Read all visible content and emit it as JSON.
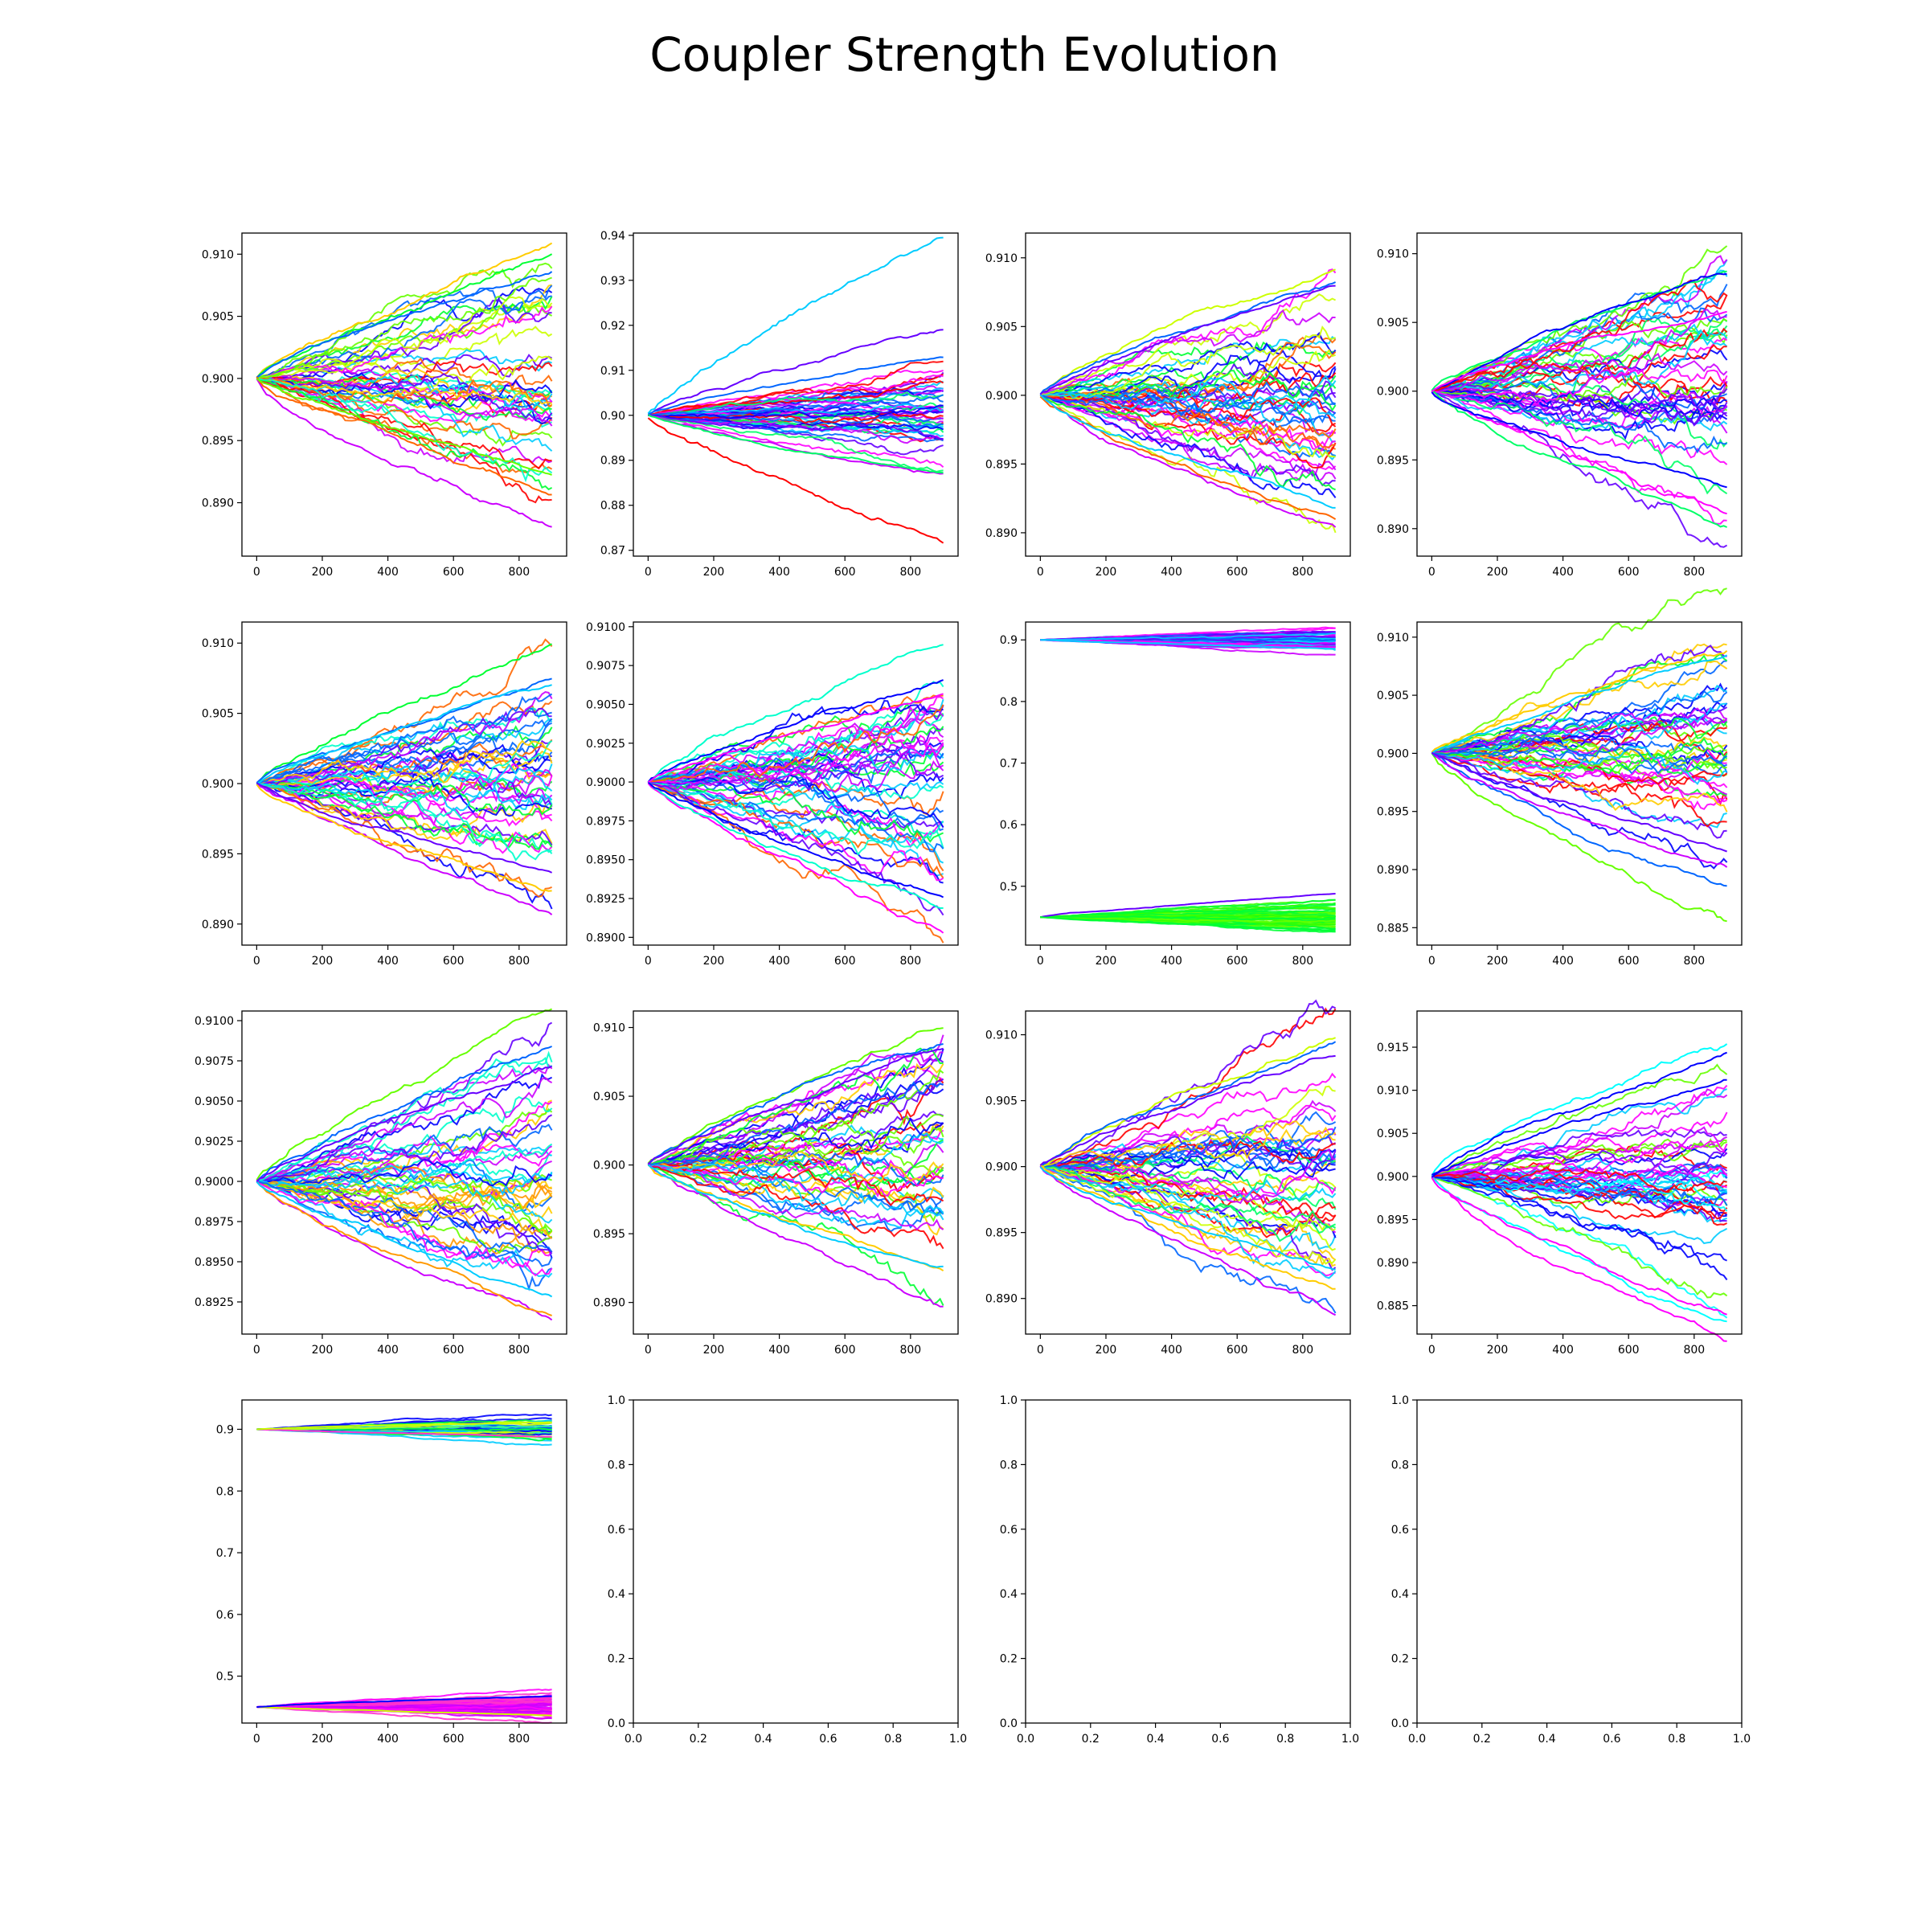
{
  "figure_title": "Coupler Strength Evolution",
  "chart_data": [
    {
      "type": "line",
      "xticks": [
        "0",
        "200",
        "400",
        "600",
        "800"
      ],
      "xlim": [
        -45,
        945
      ],
      "yticks": [
        "0.890",
        "0.895",
        "0.900",
        "0.905",
        "0.910"
      ],
      "ytick_values": [
        0.89,
        0.895,
        0.9,
        0.905,
        0.91
      ],
      "ylim": [
        0.8857,
        0.9117
      ],
      "x_end": 900,
      "start": [
        0.9
      ],
      "spread_end": 0.0055,
      "outliers": [
        0.9107,
        0.9093,
        0.9085,
        0.8872,
        0.89,
        0.8925
      ],
      "palette": [
        "#ff0000",
        "#ff6600",
        "#ffcc00",
        "#ccff00",
        "#66ff00",
        "#00ff33",
        "#00ffcc",
        "#00ccff",
        "#0066ff",
        "#0000ff",
        "#6600ff",
        "#cc00ff",
        "#ff00ff"
      ]
    },
    {
      "type": "line",
      "xticks": [
        "0",
        "200",
        "400",
        "600",
        "800"
      ],
      "xlim": [
        -45,
        945
      ],
      "yticks": [
        "0.87",
        "0.88",
        "0.89",
        "0.90",
        "0.91",
        "0.92",
        "0.93",
        "0.94"
      ],
      "ytick_values": [
        0.87,
        0.88,
        0.89,
        0.9,
        0.91,
        0.92,
        0.93,
        0.94
      ],
      "ylim": [
        0.8687,
        0.9405
      ],
      "x_end": 900,
      "start": [
        0.9
      ],
      "spread_end": 0.006,
      "outliers": [
        0.9372,
        0.9197,
        0.8722,
        0.913,
        0.885,
        0.887
      ],
      "palette": [
        "#ff0000",
        "#00ff66",
        "#00ccff",
        "#0066ff",
        "#0000ff",
        "#6600ff",
        "#cc00ff",
        "#ff00ff"
      ]
    },
    {
      "type": "line",
      "xticks": [
        "0",
        "200",
        "400",
        "600",
        "800"
      ],
      "xlim": [
        -45,
        945
      ],
      "yticks": [
        "0.890",
        "0.895",
        "0.900",
        "0.905",
        "0.910"
      ],
      "ytick_values": [
        0.89,
        0.895,
        0.9,
        0.905,
        0.91
      ],
      "ylim": [
        0.8883,
        0.9118
      ],
      "x_end": 900,
      "start": [
        0.9
      ],
      "spread_end": 0.0055,
      "outliers": [
        0.9095,
        0.9085,
        0.891,
        0.8915,
        0.8925,
        0.9075
      ],
      "palette": [
        "#ff0000",
        "#ff6600",
        "#ccff00",
        "#00ff33",
        "#00ccff",
        "#0066ff",
        "#0000ff",
        "#6600ff",
        "#cc00ff",
        "#ff00ff"
      ]
    },
    {
      "type": "line",
      "xticks": [
        "0",
        "200",
        "400",
        "600",
        "800"
      ],
      "xlim": [
        -45,
        945
      ],
      "yticks": [
        "0.890",
        "0.895",
        "0.900",
        "0.905",
        "0.910"
      ],
      "ytick_values": [
        0.89,
        0.895,
        0.9,
        0.905,
        0.91
      ],
      "ylim": [
        0.888,
        0.9115
      ],
      "x_end": 900,
      "start": [
        0.9
      ],
      "spread_end": 0.0055,
      "outliers": [
        0.9085,
        0.9075,
        0.889,
        0.89,
        0.8935,
        0.906
      ],
      "palette": [
        "#ff0000",
        "#66ff00",
        "#00ff66",
        "#00ccff",
        "#0066ff",
        "#0000ff",
        "#6600ff",
        "#cc00ff",
        "#ff00ff"
      ]
    },
    {
      "type": "line",
      "xticks": [
        "0",
        "200",
        "400",
        "600",
        "800"
      ],
      "xlim": [
        -45,
        945
      ],
      "yticks": [
        "0.890",
        "0.895",
        "0.900",
        "0.905",
        "0.910"
      ],
      "ytick_values": [
        0.89,
        0.895,
        0.9,
        0.905,
        0.91
      ],
      "ylim": [
        0.8885,
        0.9115
      ],
      "x_end": 900,
      "start": [
        0.9
      ],
      "spread_end": 0.0055,
      "outliers": [
        0.9105,
        0.908,
        0.8905,
        0.8925,
        0.9065,
        0.8935
      ],
      "palette": [
        "#ff6600",
        "#ffcc00",
        "#00ff33",
        "#00ffcc",
        "#00ccff",
        "#0066ff",
        "#0000ff",
        "#6600ff",
        "#cc00ff",
        "#ff00ff"
      ]
    },
    {
      "type": "line",
      "xticks": [
        "0",
        "200",
        "400",
        "600",
        "800"
      ],
      "xlim": [
        -45,
        945
      ],
      "yticks": [
        "0.8900",
        "0.8925",
        "0.8950",
        "0.8975",
        "0.9000",
        "0.9025",
        "0.9050",
        "0.9075",
        "0.9100"
      ],
      "ytick_values": [
        0.89,
        0.8925,
        0.895,
        0.8975,
        0.9,
        0.9025,
        0.905,
        0.9075,
        0.91
      ],
      "ylim": [
        0.8895,
        0.9103
      ],
      "x_end": 900,
      "start": [
        0.9
      ],
      "spread_end": 0.005,
      "outliers": [
        0.909,
        0.9075,
        0.8905,
        0.892,
        0.893,
        0.906
      ],
      "palette": [
        "#ff6600",
        "#00ff33",
        "#00ffcc",
        "#00ccff",
        "#0066ff",
        "#0000ff",
        "#6600ff",
        "#cc00ff",
        "#ff00ff"
      ]
    },
    {
      "type": "line",
      "xticks": [
        "0",
        "200",
        "400",
        "600",
        "800"
      ],
      "xlim": [
        -45,
        945
      ],
      "yticks": [
        "0.5",
        "0.6",
        "0.7",
        "0.8",
        "0.9"
      ],
      "ytick_values": [
        0.5,
        0.6,
        0.7,
        0.8,
        0.9
      ],
      "ylim": [
        0.4045,
        0.929
      ],
      "x_end": 900,
      "start": [
        0.9,
        0.45
      ],
      "spread_end": 0.012,
      "outliers": [
        0.4835,
        0.429,
        0.886
      ],
      "palette_groups": [
        [
          "#00ccff",
          "#0066ff",
          "#6600ff",
          "#cc00ff",
          "#ff00ff"
        ],
        [
          "#00ff33",
          "#33ff00",
          "#66ff00"
        ]
      ]
    },
    {
      "type": "line",
      "xticks": [
        "0",
        "200",
        "400",
        "600",
        "800"
      ],
      "xlim": [
        -45,
        945
      ],
      "yticks": [
        "0.885",
        "0.890",
        "0.895",
        "0.900",
        "0.905",
        "0.910"
      ],
      "ytick_values": [
        0.885,
        0.89,
        0.895,
        0.9,
        0.905,
        0.91
      ],
      "ylim": [
        0.8835,
        0.9113
      ],
      "x_end": 900,
      "start": [
        0.9
      ],
      "spread_end": 0.0055,
      "outliers": [
        0.8852,
        0.888,
        0.89,
        0.9095,
        0.908,
        0.8915
      ],
      "palette": [
        "#ff0000",
        "#ffcc00",
        "#66ff00",
        "#00ff33",
        "#00ccff",
        "#0066ff",
        "#0000ff",
        "#6600ff",
        "#cc00ff",
        "#ff00ff"
      ]
    },
    {
      "type": "line",
      "xticks": [
        "0",
        "200",
        "400",
        "600",
        "800"
      ],
      "xlim": [
        -45,
        945
      ],
      "yticks": [
        "0.8925",
        "0.8950",
        "0.8975",
        "0.9000",
        "0.9025",
        "0.9050",
        "0.9075",
        "0.9100"
      ],
      "ytick_values": [
        0.8925,
        0.895,
        0.8975,
        0.9,
        0.9025,
        0.905,
        0.9075,
        0.91
      ],
      "ylim": [
        0.8905,
        0.9106
      ],
      "x_end": 900,
      "start": [
        0.9
      ],
      "spread_end": 0.0048,
      "outliers": [
        0.9095,
        0.9085,
        0.8915,
        0.8925,
        0.8935,
        0.907
      ],
      "palette": [
        "#ffcc00",
        "#ff9900",
        "#66ff00",
        "#00ffcc",
        "#00ccff",
        "#0066ff",
        "#0000ff",
        "#6600ff",
        "#cc00ff",
        "#ff00ff"
      ]
    },
    {
      "type": "line",
      "xticks": [
        "0",
        "200",
        "400",
        "600",
        "800"
      ],
      "xlim": [
        -45,
        945
      ],
      "yticks": [
        "0.890",
        "0.895",
        "0.900",
        "0.905",
        "0.910"
      ],
      "ytick_values": [
        0.89,
        0.895,
        0.9,
        0.905,
        0.91
      ],
      "ylim": [
        0.8877,
        0.9112
      ],
      "x_end": 900,
      "start": [
        0.9
      ],
      "spread_end": 0.0055,
      "outliers": [
        0.9095,
        0.9085,
        0.889,
        0.8915,
        0.8925,
        0.9075
      ],
      "palette": [
        "#ff0000",
        "#ffcc00",
        "#66ff00",
        "#00ff33",
        "#00ccff",
        "#0066ff",
        "#0000ff",
        "#6600ff",
        "#cc00ff",
        "#ff00ff"
      ]
    },
    {
      "type": "line",
      "xticks": [
        "0",
        "200",
        "400",
        "600",
        "800"
      ],
      "xlim": [
        -45,
        945
      ],
      "yticks": [
        "0.890",
        "0.895",
        "0.900",
        "0.905",
        "0.910"
      ],
      "ytick_values": [
        0.89,
        0.895,
        0.9,
        0.905,
        0.91
      ],
      "ylim": [
        0.8873,
        0.9118
      ],
      "x_end": 900,
      "start": [
        0.9
      ],
      "spread_end": 0.0055,
      "outliers": [
        0.9105,
        0.9095,
        0.889,
        0.8905,
        0.8925,
        0.908
      ],
      "palette": [
        "#ff0000",
        "#ffcc00",
        "#ccff00",
        "#00ff66",
        "#00ccff",
        "#0066ff",
        "#0000ff",
        "#6600ff",
        "#cc00ff",
        "#ff00ff"
      ]
    },
    {
      "type": "line",
      "xticks": [
        "0",
        "200",
        "400",
        "600",
        "800"
      ],
      "xlim": [
        -45,
        945
      ],
      "yticks": [
        "0.885",
        "0.890",
        "0.895",
        "0.900",
        "0.905",
        "0.910",
        "0.915"
      ],
      "ytick_values": [
        0.885,
        0.89,
        0.895,
        0.9,
        0.905,
        0.91,
        0.915
      ],
      "ylim": [
        0.8817,
        0.9192
      ],
      "x_end": 900,
      "start": [
        0.9
      ],
      "spread_end": 0.0065,
      "outliers": [
        0.9168,
        0.914,
        0.8825,
        0.884,
        0.912,
        0.885
      ],
      "palette": [
        "#ff0000",
        "#66ff00",
        "#00ffff",
        "#00ccff",
        "#0066ff",
        "#0000ff",
        "#6600ff",
        "#cc00ff",
        "#ff00ff"
      ]
    },
    {
      "type": "line",
      "xticks": [
        "0",
        "200",
        "400",
        "600",
        "800"
      ],
      "xlim": [
        -45,
        945
      ],
      "yticks": [
        "0.5",
        "0.6",
        "0.7",
        "0.8",
        "0.9"
      ],
      "ytick_values": [
        0.5,
        0.6,
        0.7,
        0.8,
        0.9
      ],
      "ylim": [
        0.424,
        0.9475
      ],
      "x_end": 900,
      "start": [
        0.9,
        0.45
      ],
      "spread_end": 0.012,
      "outliers": [
        0.436,
        0.467,
        0.887,
        0.912
      ],
      "palette_groups": [
        [
          "#00ff33",
          "#33ff99",
          "#ccff00",
          "#00ccff",
          "#0066ff",
          "#0000ff"
        ],
        [
          "#ff00ff",
          "#cc00ff",
          "#ff33cc"
        ]
      ]
    },
    {
      "type": "empty",
      "xticks": [
        "0.0",
        "0.2",
        "0.4",
        "0.6",
        "0.8",
        "1.0"
      ],
      "xlim": [
        0,
        1
      ],
      "yticks": [
        "0.0",
        "0.2",
        "0.4",
        "0.6",
        "0.8",
        "1.0"
      ],
      "ytick_values": [
        0,
        0.2,
        0.4,
        0.6,
        0.8,
        1.0
      ],
      "ylim": [
        0,
        1
      ]
    },
    {
      "type": "empty",
      "xticks": [
        "0.0",
        "0.2",
        "0.4",
        "0.6",
        "0.8",
        "1.0"
      ],
      "xlim": [
        0,
        1
      ],
      "yticks": [
        "0.0",
        "0.2",
        "0.4",
        "0.6",
        "0.8",
        "1.0"
      ],
      "ytick_values": [
        0,
        0.2,
        0.4,
        0.6,
        0.8,
        1.0
      ],
      "ylim": [
        0,
        1
      ]
    },
    {
      "type": "empty",
      "xticks": [
        "0.0",
        "0.2",
        "0.4",
        "0.6",
        "0.8",
        "1.0"
      ],
      "xlim": [
        0,
        1
      ],
      "yticks": [
        "0.0",
        "0.2",
        "0.4",
        "0.6",
        "0.8",
        "1.0"
      ],
      "ytick_values": [
        0,
        0.2,
        0.4,
        0.6,
        0.8,
        1.0
      ],
      "ylim": [
        0,
        1
      ]
    }
  ]
}
